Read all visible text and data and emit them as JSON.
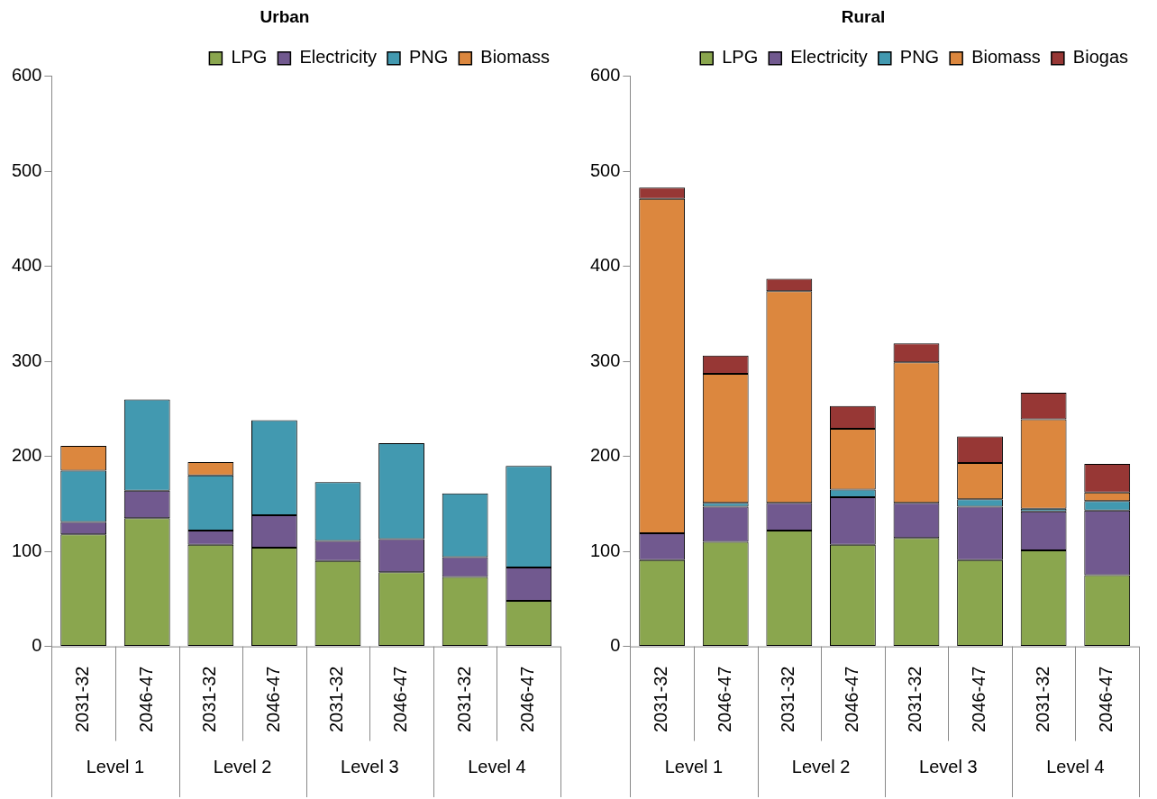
{
  "chart_data": [
    {
      "type": "bar",
      "title": "Urban",
      "stacked": true,
      "legend": "top",
      "categories": [
        "2031-32",
        "2046-47",
        "2031-32",
        "2046-47",
        "2031-32",
        "2046-47",
        "2031-32",
        "2046-47"
      ],
      "annotations": [
        "Level 1",
        "Level 2",
        "Level 3",
        "Level 4"
      ],
      "ylim": [
        0,
        600
      ],
      "yticks": [
        0,
        100,
        200,
        300,
        400,
        500,
        600
      ],
      "series": [
        {
          "name": "LPG",
          "color": "#8aa64e",
          "values": [
            118,
            135,
            107,
            104,
            90,
            78,
            73,
            48
          ]
        },
        {
          "name": "Electricity",
          "color": "#71598f",
          "values": [
            13,
            29,
            15,
            34,
            21,
            35,
            21,
            35
          ]
        },
        {
          "name": "PNG",
          "color": "#4299b0",
          "values": [
            54,
            96,
            58,
            100,
            62,
            101,
            67,
            107
          ]
        },
        {
          "name": "Biomass",
          "color": "#dc873e",
          "values": [
            26,
            null,
            14,
            null,
            null,
            null,
            null,
            null
          ]
        }
      ]
    },
    {
      "type": "bar",
      "title": "Rural",
      "stacked": true,
      "legend": "top",
      "categories": [
        "2031-32",
        "2046-47",
        "2031-32",
        "2046-47",
        "2031-32",
        "2046-47",
        "2031-32",
        "2046-47"
      ],
      "annotations": [
        "Level 1",
        "Level 2",
        "Level 3",
        "Level 4"
      ],
      "ylim": [
        0,
        600
      ],
      "yticks": [
        0,
        100,
        200,
        300,
        400,
        500,
        600
      ],
      "series": [
        {
          "name": "LPG",
          "color": "#8aa64e",
          "values": [
            91,
            110,
            122,
            107,
            114,
            91,
            101,
            75
          ]
        },
        {
          "name": "Electricity",
          "color": "#71598f",
          "values": [
            28,
            37,
            29,
            50,
            37,
            56,
            41,
            68
          ]
        },
        {
          "name": "PNG",
          "color": "#4299b0",
          "values": [
            null,
            4,
            null,
            8,
            null,
            8,
            3,
            10
          ]
        },
        {
          "name": "Biomass",
          "color": "#dc873e",
          "values": [
            352,
            136,
            223,
            64,
            148,
            38,
            94,
            9
          ]
        },
        {
          "name": "Biogas",
          "color": "#973735",
          "values": [
            12,
            19,
            13,
            24,
            20,
            28,
            28,
            30
          ]
        }
      ]
    }
  ]
}
